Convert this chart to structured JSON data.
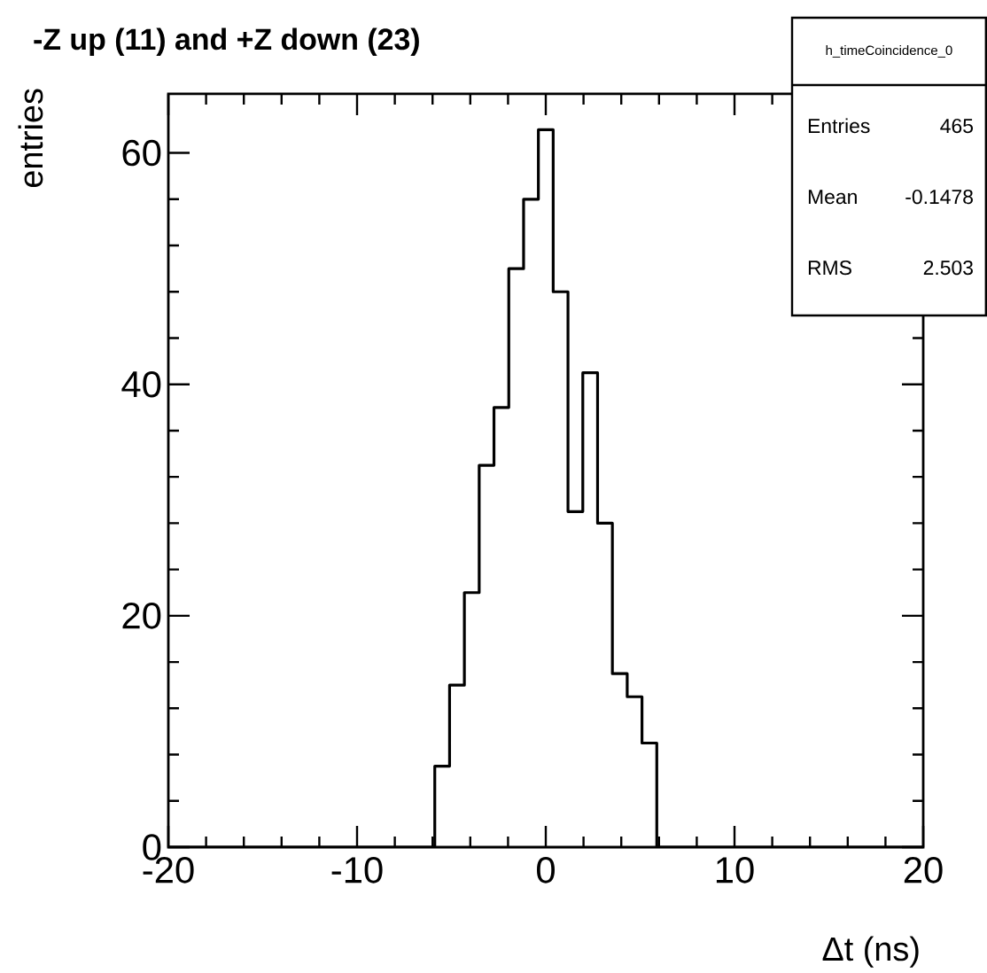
{
  "chart_data": {
    "type": "histogram",
    "title": "-Z up (11) and +Z down (23)",
    "xlabel": "Δt (ns)",
    "ylabel": "entries",
    "bins": [
      -20,
      -19.216,
      -18.431,
      -17.647,
      -16.863,
      -16.078,
      -15.294,
      -14.51,
      -13.725,
      -12.941,
      -12.157,
      -11.373,
      -10.588,
      -9.804,
      -9.02,
      -8.235,
      -7.451,
      -6.667,
      -5.882,
      -5.098,
      -4.314,
      -3.529,
      -2.745,
      -1.961,
      -1.176,
      -0.392,
      0.392,
      1.176,
      1.961,
      2.745,
      3.529,
      4.314,
      5.098,
      5.882,
      6.667,
      7.451,
      8.235,
      9.02,
      9.804,
      10.588,
      11.373,
      12.157,
      12.941,
      13.725,
      14.51,
      15.294,
      16.078,
      16.863,
      17.647,
      18.431,
      19.216,
      20
    ],
    "values": [
      0,
      0,
      0,
      0,
      0,
      0,
      0,
      0,
      0,
      0,
      0,
      0,
      0,
      0,
      0,
      0,
      0,
      0,
      7,
      14,
      22,
      33,
      38,
      50,
      56,
      62,
      48,
      29,
      41,
      28,
      15,
      13,
      9,
      0,
      0,
      0,
      0,
      0,
      0,
      0,
      0,
      0,
      0,
      0,
      0,
      0,
      0,
      0,
      0,
      0,
      0
    ],
    "color": "#000000",
    "xlim": [
      -20,
      20
    ],
    "ylim": [
      0,
      65.1
    ],
    "xticks": [
      -20,
      -10,
      0,
      10,
      20
    ],
    "yticks": [
      0,
      20,
      40,
      60
    ],
    "legend_title": "h_timeCoincidence_0",
    "annotations": [
      "Entries",
      "465",
      "Mean",
      "-0.1478",
      "RMS",
      "2.503"
    ]
  }
}
